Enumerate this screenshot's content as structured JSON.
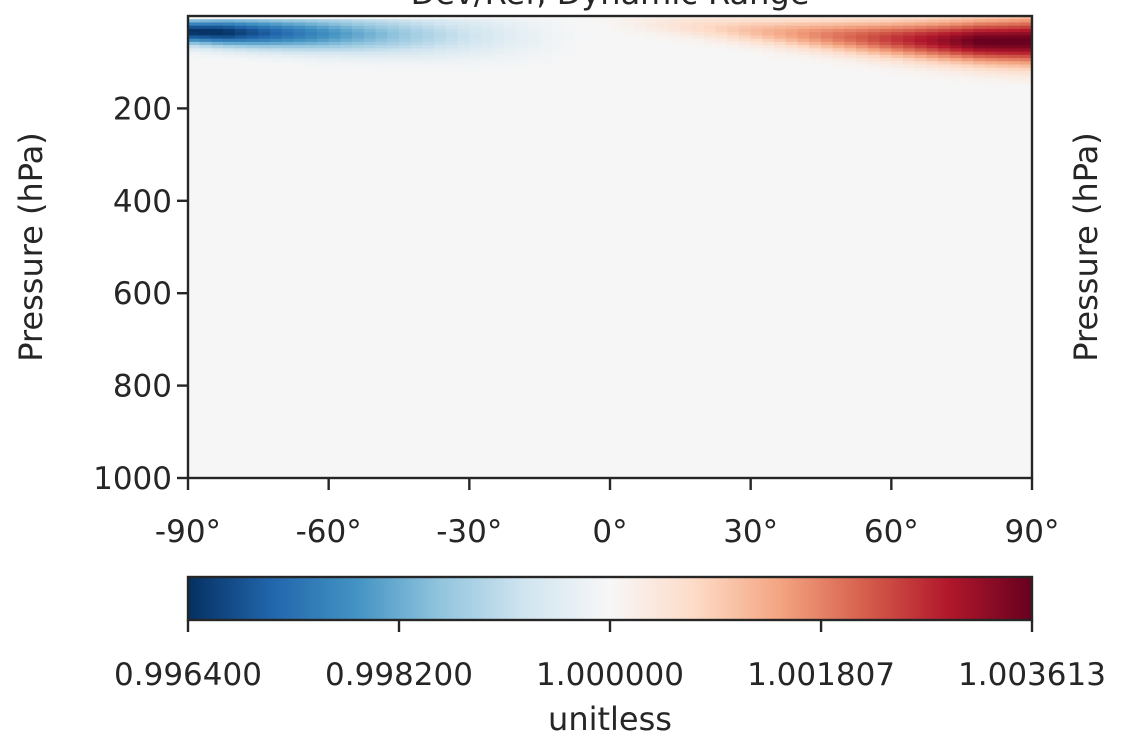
{
  "chart_data": {
    "type": "heatmap",
    "title": "Dev/Ref, Dynamic Range",
    "xlabel": "",
    "ylabel": "Pressure (hPa)",
    "right_ylabel": "Pressure (hPa)",
    "xlim": [
      -90,
      90
    ],
    "ylim": [
      1000,
      0
    ],
    "x_ticks": [
      -90,
      -60,
      -30,
      0,
      30,
      60,
      90
    ],
    "x_tick_labels": [
      "-90°",
      "-60°",
      "-30°",
      "0°",
      "30°",
      "60°",
      "90°"
    ],
    "y_ticks": [
      200,
      400,
      600,
      800,
      1000
    ],
    "y_tick_labels": [
      "200",
      "400",
      "600",
      "800",
      "1000"
    ],
    "colormap": "RdBu_r",
    "colormap_stops": [
      "#053061",
      "#2166ac",
      "#4393c3",
      "#92c5de",
      "#d1e5f0",
      "#f7f7f7",
      "#fddbc7",
      "#f4a582",
      "#d6604d",
      "#b2182b",
      "#67001f"
    ],
    "background_value_color": "#f6f6f6",
    "colorbar": {
      "label": "unitless",
      "orientation": "horizontal",
      "range": [
        0.9964,
        1.003613
      ],
      "ticks": [
        0.9964,
        0.9982,
        1.0,
        1.001807,
        1.003613
      ],
      "tick_labels": [
        "0.996400",
        "0.998200",
        "1.000000",
        "1.001807",
        "1.003613"
      ]
    },
    "features": [
      {
        "name": "southern-stratosphere-minimum",
        "lat_range": [
          -90,
          -5
        ],
        "pressure_range": [
          10,
          130
        ],
        "peak_value": 0.9964,
        "peak_lat": -85,
        "peak_pressure": 45
      },
      {
        "name": "northern-stratosphere-maximum",
        "lat_range": [
          0,
          90
        ],
        "pressure_range": [
          0,
          130
        ],
        "peak_value": 1.003613,
        "peak_lat": 85,
        "peak_pressure": 55
      }
    ]
  }
}
